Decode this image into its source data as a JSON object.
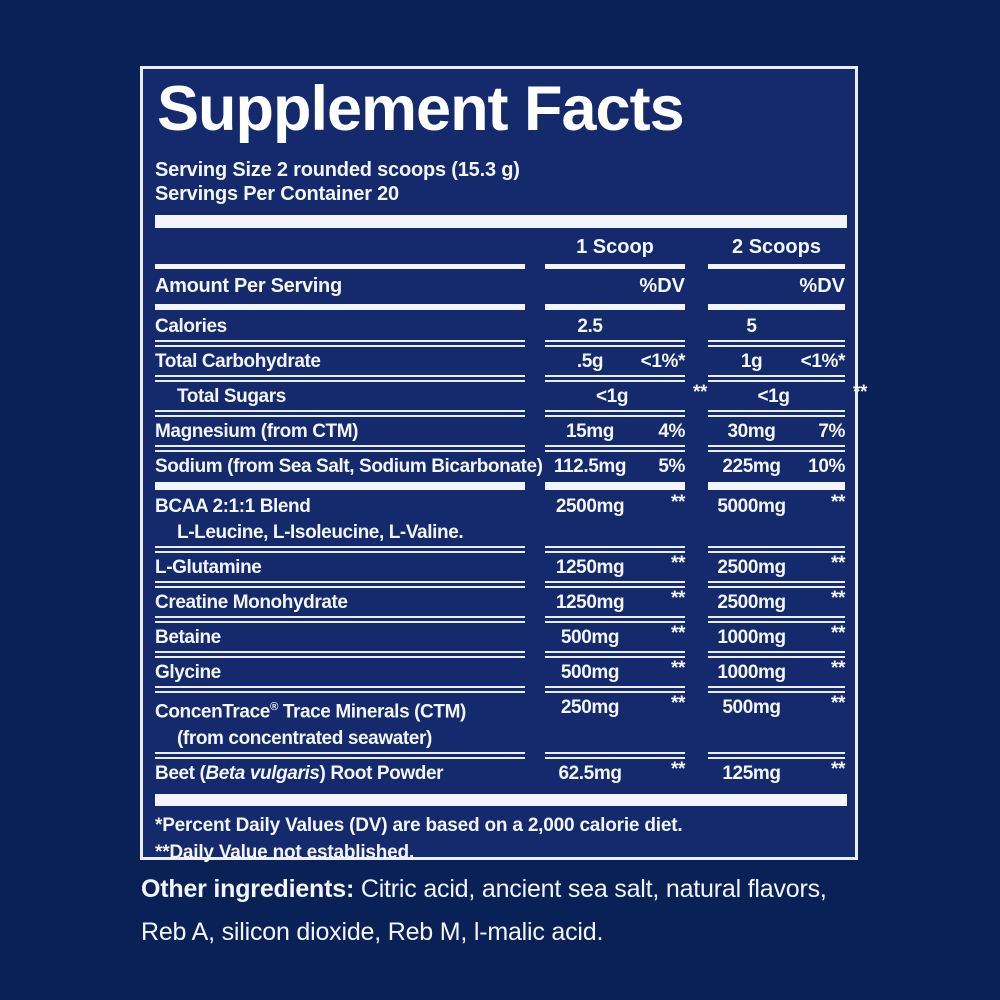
{
  "colors": {
    "background": "#0a2158",
    "panel_background": "#15296d",
    "rule_lines": "#e9edf7",
    "text": "#f3f6fd",
    "title": "#ffffff"
  },
  "panel": {
    "title": "Supplement Facts",
    "serving_size": "Serving Size 2 rounded scoops (15.3 g)",
    "servings_per_container": "Servings Per Container 20",
    "columns": {
      "scoop1": "1 Scoop",
      "scoop2": "2 Scoops"
    },
    "amount_per_serving_label": "Amount Per Serving",
    "dv_label": "%DV",
    "rows": [
      {
        "name_parts": [
          {
            "text": "Calories"
          }
        ],
        "indent": 0,
        "sub": null,
        "s1": {
          "amount": "2.5",
          "dv": ""
        },
        "s2": {
          "amount": "5",
          "dv": ""
        },
        "after": "sep"
      },
      {
        "name_parts": [
          {
            "text": "Total Carbohydrate"
          }
        ],
        "indent": 0,
        "sub": null,
        "s1": {
          "amount": ".5g",
          "dv": "<1%*"
        },
        "s2": {
          "amount": "1g",
          "dv": "<1%*"
        },
        "after": "sep"
      },
      {
        "name_parts": [
          {
            "text": "Total Sugars"
          }
        ],
        "indent": 1,
        "sub": null,
        "s1": {
          "amount": "<1g",
          "dv": "**"
        },
        "s2": {
          "amount": "<1g",
          "dv": "**"
        },
        "after": "sep"
      },
      {
        "name_parts": [
          {
            "text": "Magnesium (from CTM)"
          }
        ],
        "indent": 0,
        "sub": null,
        "s1": {
          "amount": "15mg",
          "dv": "4%"
        },
        "s2": {
          "amount": "30mg",
          "dv": "7%"
        },
        "after": "sep"
      },
      {
        "name_parts": [
          {
            "text": "Sodium (from Sea Salt, Sodium Bicarbonate)"
          }
        ],
        "indent": 0,
        "sub": null,
        "s1": {
          "amount": "112.5mg",
          "dv": "5%"
        },
        "s2": {
          "amount": "225mg",
          "dv": "10%"
        },
        "after": "bars"
      },
      {
        "name_parts": [
          {
            "text": "BCAA 2:1:1 Blend"
          }
        ],
        "indent": 0,
        "sub": "L-Leucine, L-Isoleucine, L-Valine.",
        "s1": {
          "amount": "2500mg",
          "dv": "**"
        },
        "s2": {
          "amount": "5000mg",
          "dv": "**"
        },
        "after": "sep"
      },
      {
        "name_parts": [
          {
            "text": "L-Glutamine"
          }
        ],
        "indent": 0,
        "sub": null,
        "s1": {
          "amount": "1250mg",
          "dv": "**"
        },
        "s2": {
          "amount": "2500mg",
          "dv": "**"
        },
        "after": "sep"
      },
      {
        "name_parts": [
          {
            "text": "Creatine Monohydrate"
          }
        ],
        "indent": 0,
        "sub": null,
        "s1": {
          "amount": "1250mg",
          "dv": "**"
        },
        "s2": {
          "amount": "2500mg",
          "dv": "**"
        },
        "after": "sep"
      },
      {
        "name_parts": [
          {
            "text": "Betaine"
          }
        ],
        "indent": 0,
        "sub": null,
        "s1": {
          "amount": "500mg",
          "dv": "**"
        },
        "s2": {
          "amount": "1000mg",
          "dv": "**"
        },
        "after": "sep"
      },
      {
        "name_parts": [
          {
            "text": "Glycine"
          }
        ],
        "indent": 0,
        "sub": null,
        "s1": {
          "amount": "500mg",
          "dv": "**"
        },
        "s2": {
          "amount": "1000mg",
          "dv": "**"
        },
        "after": "sep"
      },
      {
        "name_parts": [
          {
            "text": "ConcenTrace"
          },
          {
            "text": "®",
            "style": "sup"
          },
          {
            "text": " Trace Minerals (CTM)"
          }
        ],
        "indent": 0,
        "sub": "(from concentrated seawater)",
        "s1": {
          "amount": "250mg",
          "dv": "**"
        },
        "s2": {
          "amount": "500mg",
          "dv": "**"
        },
        "after": "sep"
      },
      {
        "name_parts": [
          {
            "text": "Beet ("
          },
          {
            "text": "Beta vulgaris",
            "style": "italic"
          },
          {
            "text": ") Root Powder"
          }
        ],
        "indent": 0,
        "sub": null,
        "s1": {
          "amount": "62.5mg",
          "dv": "**"
        },
        "s2": {
          "amount": "125mg",
          "dv": "**"
        },
        "after": "none"
      }
    ],
    "footnotes": [
      "*Percent Daily Values (DV) are based on a 2,000 calorie diet.",
      "**Daily Value not established."
    ]
  },
  "other_ingredients": {
    "label": "Other ingredients:",
    "text": "Citric acid, ancient sea salt, natural flavors, Reb A, silicon dioxide, Reb M, l-malic acid."
  }
}
